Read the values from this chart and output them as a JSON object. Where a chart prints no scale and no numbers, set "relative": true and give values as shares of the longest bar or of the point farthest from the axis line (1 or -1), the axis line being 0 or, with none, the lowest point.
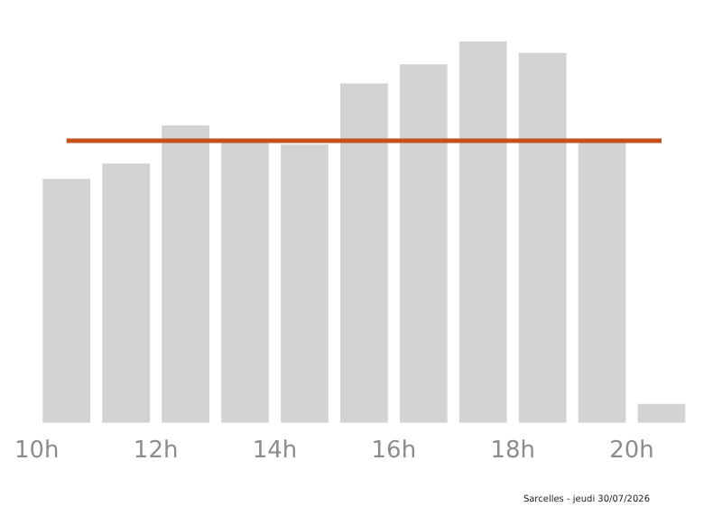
{
  "chart_data": {
    "type": "bar",
    "relative": true,
    "x": [
      10.5,
      11.5,
      12.5,
      13.5,
      14.5,
      15.5,
      16.5,
      17.5,
      18.5,
      19.5,
      20.5
    ],
    "values": [
      0.64,
      0.68,
      0.78,
      0.74,
      0.73,
      0.89,
      0.94,
      1,
      0.97,
      0.74,
      0.05
    ],
    "color": "#d3d3d3",
    "xlim": [
      10,
      21
    ],
    "xticks": [
      {
        "value": 10,
        "label": "10h"
      },
      {
        "value": 12,
        "label": "12h"
      },
      {
        "value": 14,
        "label": "14h"
      },
      {
        "value": 16,
        "label": "16h"
      },
      {
        "value": 18,
        "label": "18h"
      },
      {
        "value": 20,
        "label": "20h"
      }
    ],
    "ref_lines": [
      {
        "axis": "y",
        "value": 0.74,
        "color": "#c4501c"
      }
    ],
    "annotations": [
      "Sarcelles - jeudi 30/07/2026"
    ],
    "grid": false,
    "legend": false
  }
}
